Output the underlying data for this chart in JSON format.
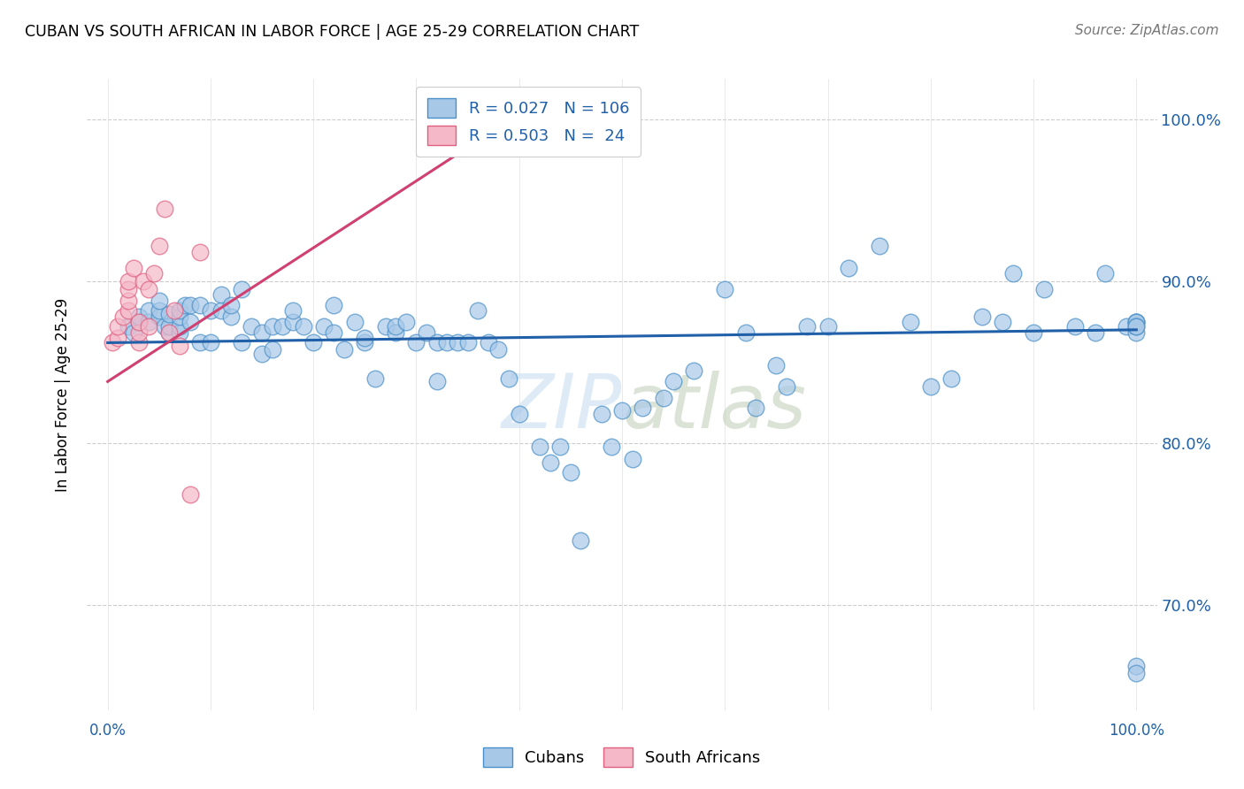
{
  "title": "CUBAN VS SOUTH AFRICAN IN LABOR FORCE | AGE 25-29 CORRELATION CHART",
  "source": "Source: ZipAtlas.com",
  "ylabel": "In Labor Force | Age 25-29",
  "ytick_labels": [
    "70.0%",
    "80.0%",
    "90.0%",
    "100.0%"
  ],
  "ytick_values": [
    0.7,
    0.8,
    0.9,
    1.0
  ],
  "xlim": [
    -0.02,
    1.02
  ],
  "ylim": [
    0.635,
    1.025
  ],
  "blue_color": "#a8c8e8",
  "pink_color": "#f4b8c8",
  "blue_edge_color": "#4a90c8",
  "pink_edge_color": "#e06080",
  "blue_line_color": "#2060a8",
  "pink_line_color": "#d04070",
  "blue_label": "Cubans",
  "pink_label": "South Africans",
  "R_blue": 0.027,
  "N_blue": 106,
  "R_pink": 0.503,
  "N_pink": 24,
  "legend_text_color": "#2060a8",
  "axis_label_color": "#2060a8",
  "watermark_color": "#c8dff0",
  "blue_scatter_x": [
    0.02,
    0.025,
    0.03,
    0.03,
    0.04,
    0.04,
    0.05,
    0.05,
    0.05,
    0.055,
    0.06,
    0.06,
    0.06,
    0.07,
    0.07,
    0.07,
    0.07,
    0.075,
    0.08,
    0.08,
    0.09,
    0.09,
    0.1,
    0.1,
    0.11,
    0.11,
    0.12,
    0.12,
    0.13,
    0.13,
    0.14,
    0.15,
    0.15,
    0.16,
    0.16,
    0.17,
    0.18,
    0.18,
    0.19,
    0.2,
    0.21,
    0.22,
    0.22,
    0.23,
    0.24,
    0.25,
    0.25,
    0.26,
    0.27,
    0.28,
    0.28,
    0.29,
    0.3,
    0.31,
    0.32,
    0.32,
    0.33,
    0.34,
    0.35,
    0.36,
    0.37,
    0.38,
    0.39,
    0.4,
    0.42,
    0.43,
    0.44,
    0.45,
    0.46,
    0.48,
    0.49,
    0.5,
    0.51,
    0.52,
    0.54,
    0.55,
    0.57,
    0.6,
    0.62,
    0.63,
    0.65,
    0.66,
    0.68,
    0.7,
    0.72,
    0.75,
    0.78,
    0.8,
    0.82,
    0.85,
    0.87,
    0.88,
    0.9,
    0.91,
    0.94,
    0.96,
    0.97,
    0.99,
    1.0,
    1.0,
    1.0,
    1.0,
    1.0,
    1.0,
    1.0,
    1.0
  ],
  "blue_scatter_y": [
    0.872,
    0.868,
    0.875,
    0.878,
    0.875,
    0.882,
    0.878,
    0.882,
    0.888,
    0.872,
    0.868,
    0.872,
    0.88,
    0.868,
    0.872,
    0.878,
    0.882,
    0.885,
    0.875,
    0.885,
    0.862,
    0.885,
    0.862,
    0.882,
    0.882,
    0.892,
    0.878,
    0.885,
    0.895,
    0.862,
    0.872,
    0.855,
    0.868,
    0.858,
    0.872,
    0.872,
    0.875,
    0.882,
    0.872,
    0.862,
    0.872,
    0.885,
    0.868,
    0.858,
    0.875,
    0.862,
    0.865,
    0.84,
    0.872,
    0.868,
    0.872,
    0.875,
    0.862,
    0.868,
    0.838,
    0.862,
    0.862,
    0.862,
    0.862,
    0.882,
    0.862,
    0.858,
    0.84,
    0.818,
    0.798,
    0.788,
    0.798,
    0.782,
    0.74,
    0.818,
    0.798,
    0.82,
    0.79,
    0.822,
    0.828,
    0.838,
    0.845,
    0.895,
    0.868,
    0.822,
    0.848,
    0.835,
    0.872,
    0.872,
    0.908,
    0.922,
    0.875,
    0.835,
    0.84,
    0.878,
    0.875,
    0.905,
    0.868,
    0.895,
    0.872,
    0.868,
    0.905,
    0.872,
    0.875,
    0.868,
    0.875,
    0.875,
    0.662,
    0.658,
    0.872,
    0.872
  ],
  "pink_scatter_x": [
    0.005,
    0.01,
    0.01,
    0.015,
    0.02,
    0.02,
    0.02,
    0.02,
    0.025,
    0.03,
    0.03,
    0.03,
    0.035,
    0.04,
    0.04,
    0.045,
    0.05,
    0.055,
    0.06,
    0.065,
    0.07,
    0.08,
    0.09,
    0.38
  ],
  "pink_scatter_y": [
    0.862,
    0.865,
    0.872,
    0.878,
    0.882,
    0.888,
    0.895,
    0.9,
    0.908,
    0.862,
    0.868,
    0.875,
    0.9,
    0.872,
    0.895,
    0.905,
    0.922,
    0.945,
    0.868,
    0.882,
    0.86,
    0.768,
    0.918,
    0.995
  ],
  "blue_trend_x": [
    0.0,
    1.0
  ],
  "blue_trend_y": [
    0.862,
    0.87
  ],
  "pink_trend_x": [
    0.0,
    0.38
  ],
  "pink_trend_y": [
    0.838,
    0.995
  ]
}
